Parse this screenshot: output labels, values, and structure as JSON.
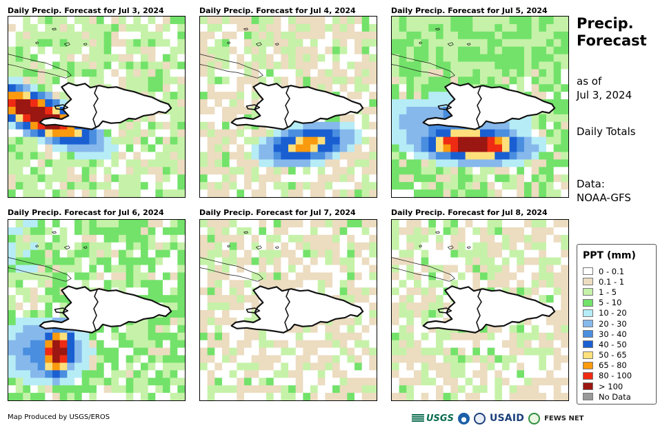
{
  "panels": [
    {
      "title": "Daily Precip. Forecast for Jul 3, 2024",
      "scenario": "jul3"
    },
    {
      "title": "Daily Precip. Forecast for Jul 4, 2024",
      "scenario": "jul4"
    },
    {
      "title": "Daily Precip. Forecast for Jul 5, 2024",
      "scenario": "jul5"
    },
    {
      "title": "Daily Precip. Forecast for Jul 6, 2024",
      "scenario": "jul6"
    },
    {
      "title": "Daily Precip. Forecast for Jul 7, 2024",
      "scenario": "jul7"
    },
    {
      "title": "Daily Precip. Forecast for Jul 8, 2024",
      "scenario": "jul8"
    }
  ],
  "side": {
    "title_line1": "Precip.",
    "title_line2": "Forecast",
    "asof_line1": "as of",
    "asof_line2": "Jul 3, 2024",
    "totals": "Daily Totals",
    "data_line1": "Data:",
    "data_line2": "NOAA-GFS"
  },
  "legend": {
    "title": "PPT (mm)",
    "items": [
      {
        "label": "0 - 0.1",
        "color": "#ffffff"
      },
      {
        "label": "0.1 - 1",
        "color": "#ecdcc0"
      },
      {
        "label": "1 - 5",
        "color": "#c5f2a8"
      },
      {
        "label": "5 - 10",
        "color": "#73e26a"
      },
      {
        "label": "10 - 20",
        "color": "#b6ecf6"
      },
      {
        "label": "20 - 30",
        "color": "#86b8ec"
      },
      {
        "label": "30 - 40",
        "color": "#4a8ee0"
      },
      {
        "label": "40 - 50",
        "color": "#1a5fd2"
      },
      {
        "label": "50 - 65",
        "color": "#fde07c"
      },
      {
        "label": "65 - 80",
        "color": "#f99a0f"
      },
      {
        "label": "80 - 100",
        "color": "#ef2b14"
      },
      {
        "label": "> 100",
        "color": "#9b1712"
      },
      {
        "label": "No Data",
        "color": "#999999"
      }
    ]
  },
  "footer": {
    "credit": "Map Produced by USGS/EROS",
    "logo_usgs": "USGS",
    "logo_usaid": "USAID",
    "logo_fews": "FEWS NET"
  }
}
